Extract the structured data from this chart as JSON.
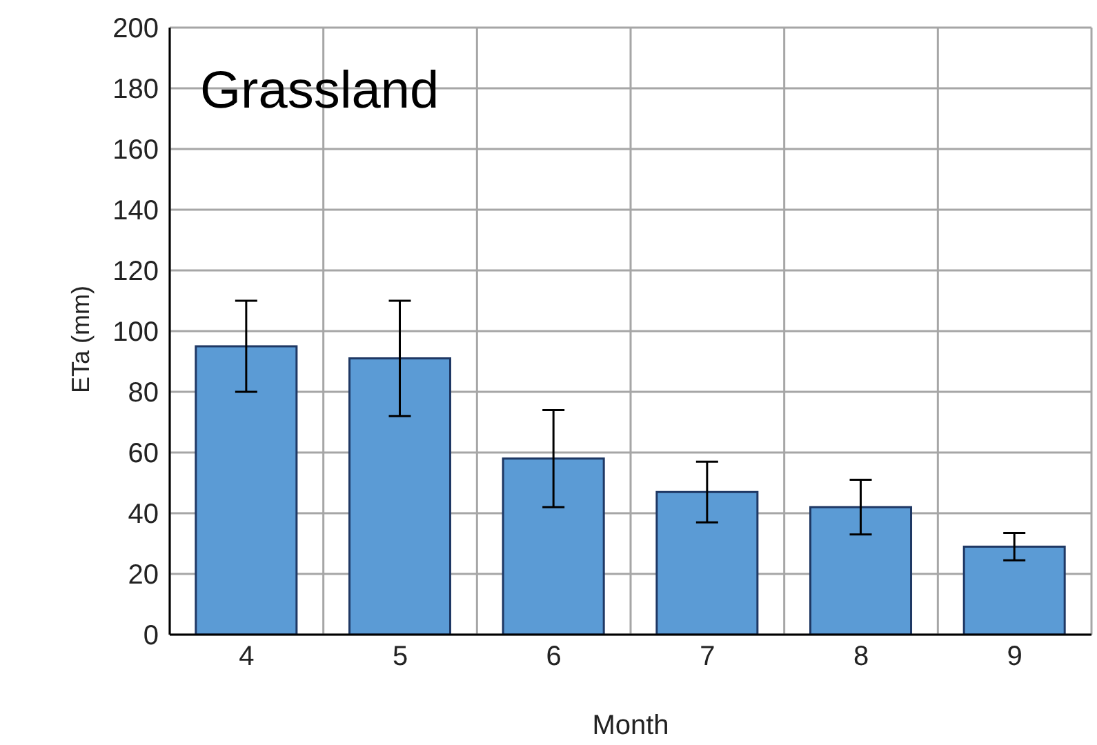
{
  "chart_data": {
    "type": "bar",
    "title": "Grassland",
    "xlabel": "Month",
    "ylabel": "ETa (mm)",
    "categories": [
      "4",
      "5",
      "6",
      "7",
      "8",
      "9"
    ],
    "values": [
      95,
      91,
      58,
      47,
      42,
      29
    ],
    "errors": [
      15,
      19,
      16,
      10,
      9,
      4.5
    ],
    "color": "#5b9bd5",
    "ylim": [
      0,
      200
    ],
    "yticks": [
      0,
      20,
      40,
      60,
      80,
      100,
      120,
      140,
      160,
      180,
      200
    ],
    "grid": true
  }
}
